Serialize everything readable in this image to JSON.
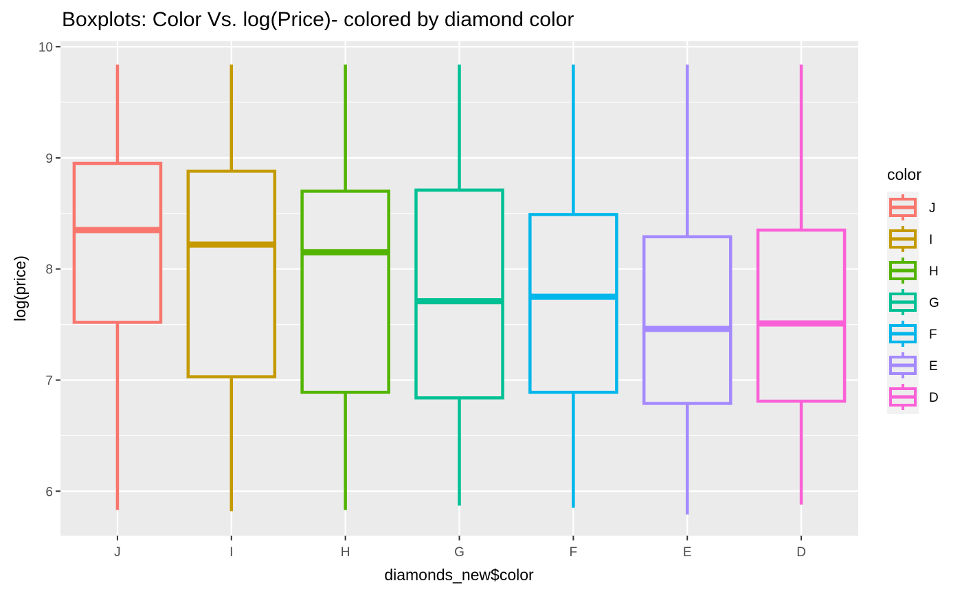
{
  "chart_data": {
    "type": "boxplot",
    "title": "Boxplots: Color Vs. log(Price)- colored by diamond color",
    "xlabel": "diamonds_new$color",
    "ylabel": "log(price)",
    "ylim": [
      5.6,
      10.05
    ],
    "yticks": [
      6,
      7,
      8,
      9,
      10
    ],
    "grid": true,
    "legend": {
      "title": "color",
      "position": "right"
    },
    "categories": [
      "J",
      "I",
      "H",
      "G",
      "F",
      "E",
      "D"
    ],
    "series": [
      {
        "name": "J",
        "color": "#F8766D",
        "min": 5.83,
        "q1": 7.52,
        "median": 8.35,
        "q3": 8.95,
        "max": 9.84
      },
      {
        "name": "I",
        "color": "#C49A00",
        "min": 5.82,
        "q1": 7.03,
        "median": 8.22,
        "q3": 8.88,
        "max": 9.84
      },
      {
        "name": "H",
        "color": "#53B400",
        "min": 5.83,
        "q1": 6.89,
        "median": 8.15,
        "q3": 8.7,
        "max": 9.84
      },
      {
        "name": "G",
        "color": "#00C094",
        "min": 5.87,
        "q1": 6.84,
        "median": 7.71,
        "q3": 8.71,
        "max": 9.84
      },
      {
        "name": "F",
        "color": "#00B6EB",
        "min": 5.85,
        "q1": 6.89,
        "median": 7.75,
        "q3": 8.49,
        "max": 9.84
      },
      {
        "name": "E",
        "color": "#A58AFF",
        "min": 5.79,
        "q1": 6.79,
        "median": 7.46,
        "q3": 8.29,
        "max": 9.84
      },
      {
        "name": "D",
        "color": "#FB61D7",
        "min": 5.88,
        "q1": 6.81,
        "median": 7.51,
        "q3": 8.35,
        "max": 9.84
      }
    ]
  }
}
